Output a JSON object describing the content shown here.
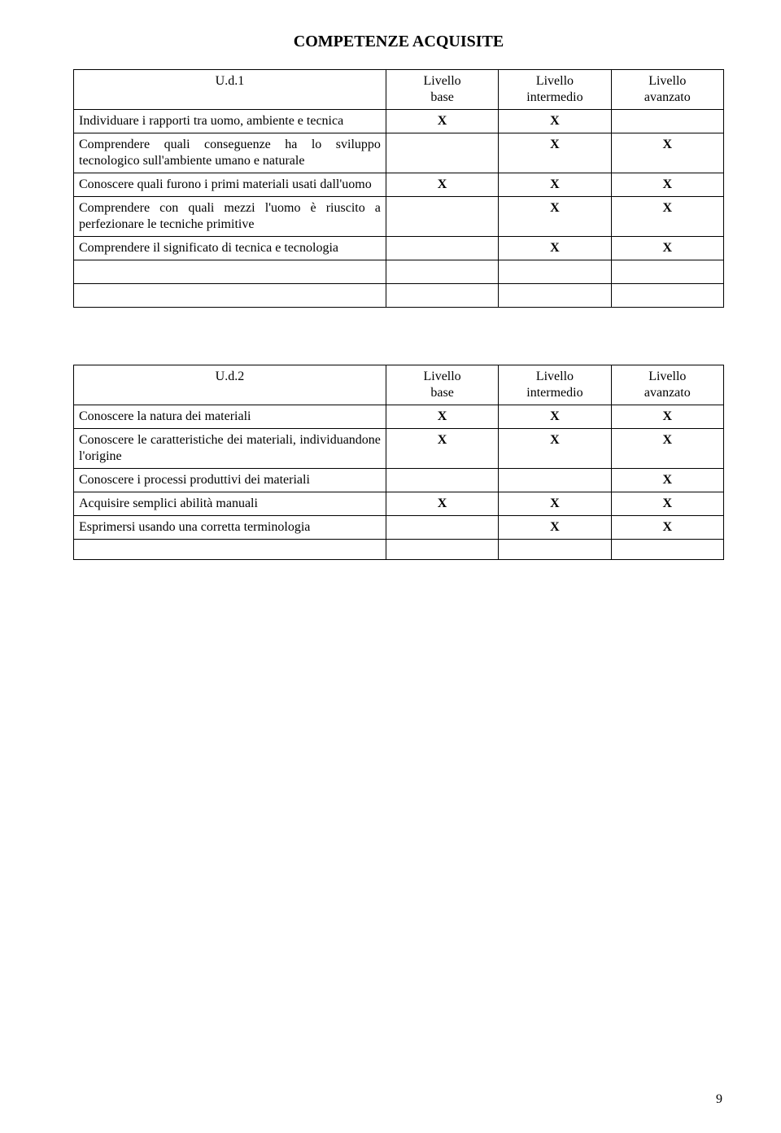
{
  "title": "COMPETENZE ACQUISITE",
  "pageNumber": "9",
  "x": "X",
  "columns": {
    "col1w": "48%",
    "col2w": "17.3%",
    "col3w": "17.3%",
    "col4w": "17.3%"
  },
  "headers": {
    "base": "Livello base",
    "intermedio": "Livello intermedio",
    "avanzato": "Livello avanzato"
  },
  "table1": {
    "unitLabel": "U.d.1",
    "rows": [
      {
        "desc": "Individuare i rapporti tra uomo, ambiente e tecnica",
        "base": true,
        "inter": true,
        "avan": false
      },
      {
        "desc": "Comprendere quali conseguenze ha lo sviluppo tecnologico sull'ambiente umano e naturale",
        "base": false,
        "inter": true,
        "avan": true
      },
      {
        "desc": "Conoscere quali furono i primi materiali usati dall'uomo",
        "base": true,
        "inter": true,
        "avan": true
      },
      {
        "desc": "Comprendere con quali mezzi l'uomo è riuscito a perfezionare le tecniche primitive",
        "base": false,
        "inter": true,
        "avan": true
      },
      {
        "desc": "Comprendere il significato di tecnica e tecnologia",
        "base": false,
        "inter": true,
        "avan": true
      }
    ]
  },
  "table2": {
    "unitLabel": "U.d.2",
    "rows": [
      {
        "desc": "Conoscere la natura dei materiali",
        "base": true,
        "inter": true,
        "avan": true
      },
      {
        "desc": "Conoscere le caratteristiche dei materiali, individuandone l'origine",
        "base": true,
        "inter": true,
        "avan": true
      },
      {
        "desc": "Conoscere i processi produttivi dei materiali",
        "base": false,
        "inter": false,
        "avan": true
      },
      {
        "desc": "Acquisire semplici abilità manuali",
        "base": true,
        "inter": true,
        "avan": true
      },
      {
        "desc": "Esprimersi usando una corretta terminologia",
        "base": false,
        "inter": true,
        "avan": true
      }
    ]
  }
}
